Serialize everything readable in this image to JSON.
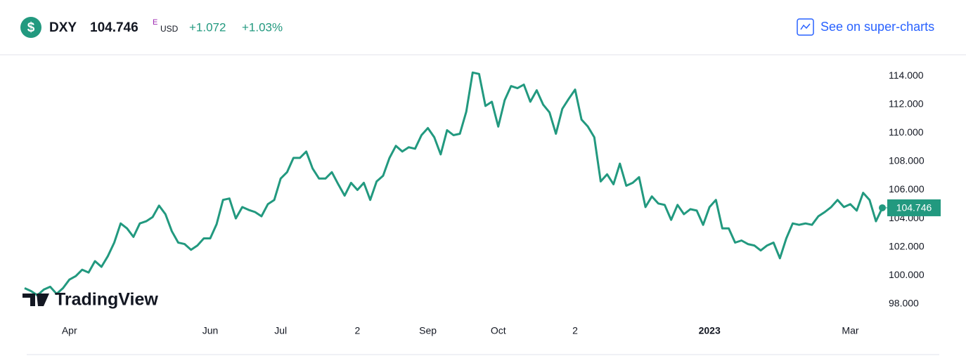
{
  "header": {
    "symbol": "DXY",
    "price": "104.746",
    "price_flag": "E",
    "currency": "USD",
    "change": "+1.072",
    "change_percent": "+1.03%",
    "link": "See on super-charts"
  },
  "watermark": "TradingView",
  "chart_data": {
    "type": "line",
    "color": "#22997f",
    "categories": [
      null,
      null,
      null,
      null,
      null,
      null,
      null,
      "Apr",
      null,
      null,
      null,
      null,
      null,
      null,
      null,
      null,
      null,
      null,
      null,
      null,
      null,
      null,
      null,
      null,
      null,
      null,
      null,
      null,
      null,
      "Jun",
      null,
      null,
      null,
      null,
      null,
      null,
      null,
      null,
      null,
      null,
      "Jul",
      null,
      null,
      null,
      null,
      null,
      null,
      null,
      null,
      null,
      null,
      null,
      "2",
      null,
      null,
      null,
      null,
      null,
      null,
      null,
      null,
      null,
      null,
      "Sep",
      null,
      null,
      null,
      null,
      null,
      null,
      null,
      null,
      null,
      null,
      "Oct",
      null,
      null,
      null,
      null,
      null,
      null,
      null,
      null,
      null,
      null,
      null,
      "2",
      null,
      null,
      null,
      null,
      null,
      null,
      null,
      null,
      null,
      null,
      null,
      null,
      null,
      null,
      null,
      null,
      null,
      null,
      null,
      null,
      "2023",
      null,
      null,
      null,
      null,
      null,
      null,
      null,
      null,
      null,
      null,
      null,
      null,
      null,
      null,
      null,
      null,
      null,
      null,
      null,
      null,
      null,
      "Mar",
      null,
      null,
      null,
      null,
      null
    ],
    "values": [
      99.1,
      98.9,
      98.6,
      99.0,
      99.2,
      98.7,
      99.1,
      99.7,
      99.95,
      100.4,
      100.2,
      101.0,
      100.6,
      101.35,
      102.3,
      103.65,
      103.3,
      102.7,
      103.65,
      103.8,
      104.1,
      104.9,
      104.3,
      103.1,
      102.3,
      102.2,
      101.8,
      102.1,
      102.6,
      102.6,
      103.6,
      105.3,
      105.4,
      104.0,
      104.8,
      104.6,
      104.45,
      104.15,
      105.0,
      105.3,
      106.8,
      107.25,
      108.25,
      108.25,
      108.7,
      107.5,
      106.8,
      106.8,
      107.25,
      106.4,
      105.6,
      106.5,
      106.0,
      106.5,
      105.3,
      106.6,
      107.0,
      108.25,
      109.1,
      108.7,
      109.0,
      108.9,
      109.85,
      110.35,
      109.7,
      108.5,
      110.2,
      109.85,
      109.95,
      111.5,
      114.25,
      114.15,
      111.9,
      112.2,
      110.45,
      112.3,
      113.3,
      113.15,
      113.4,
      112.2,
      113.0,
      112.0,
      111.45,
      109.95,
      111.7,
      112.4,
      113.05,
      110.95,
      110.45,
      109.7,
      106.6,
      107.1,
      106.4,
      107.85,
      106.3,
      106.5,
      106.9,
      104.8,
      105.55,
      105.05,
      104.95,
      103.9,
      104.95,
      104.3,
      104.65,
      104.55,
      103.55,
      104.8,
      105.3,
      103.3,
      103.3,
      102.3,
      102.45,
      102.2,
      102.1,
      101.75,
      102.1,
      102.3,
      101.2,
      102.6,
      103.65,
      103.55,
      103.65,
      103.55,
      104.15,
      104.45,
      104.8,
      105.3,
      104.8,
      105.0,
      104.55,
      105.8,
      105.3,
      103.8,
      104.746
    ],
    "ylim": [
      96.9,
      115.4
    ],
    "yticks": [
      {
        "value": 98,
        "label": "98.000"
      },
      {
        "value": 100,
        "label": "100.000"
      },
      {
        "value": 102,
        "label": "102.000"
      },
      {
        "value": 104,
        "label": "104.000"
      },
      {
        "value": 106,
        "label": "106.000"
      },
      {
        "value": 108,
        "label": "108.000"
      },
      {
        "value": 110,
        "label": "110.000"
      },
      {
        "value": 112,
        "label": "112.000"
      },
      {
        "value": 114,
        "label": "114.000"
      }
    ]
  }
}
